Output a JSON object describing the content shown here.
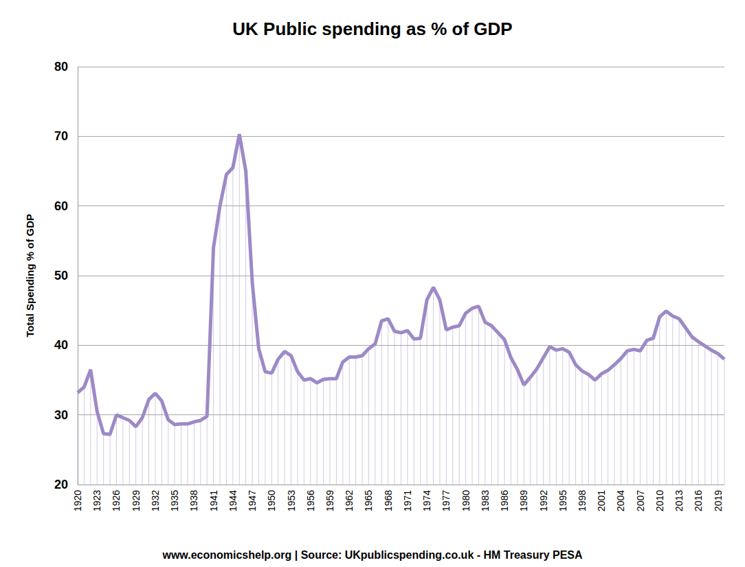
{
  "chart_data": {
    "type": "line",
    "title": "UK Public spending as % of GDP",
    "y_label": "Total Spending % of GDP",
    "annotation": "www.economicshelp.org | Source: UKpublicspending.co.uk - HM Treasury PESA",
    "categories": [
      "1920",
      null,
      null,
      "1923",
      null,
      null,
      "1926",
      null,
      null,
      "1929",
      null,
      null,
      "1932",
      null,
      null,
      "1935",
      null,
      null,
      "1938",
      null,
      null,
      "1941",
      null,
      null,
      "1944",
      null,
      null,
      "1947",
      null,
      null,
      "1950",
      null,
      null,
      "1953",
      null,
      null,
      "1956",
      null,
      null,
      "1959",
      null,
      null,
      "1962",
      null,
      null,
      "1965",
      null,
      null,
      "1968",
      null,
      null,
      "1971",
      null,
      null,
      "1974",
      null,
      null,
      "1977",
      null,
      null,
      "1980",
      null,
      null,
      "1983",
      null,
      null,
      "1986",
      null,
      null,
      "1989",
      null,
      null,
      "1992",
      null,
      null,
      "1995",
      null,
      null,
      "1998",
      null,
      null,
      "2001",
      null,
      null,
      "2004",
      null,
      null,
      "2007",
      null,
      null,
      "2010",
      null,
      null,
      "2013",
      null,
      null,
      "2016",
      null,
      null,
      "2019",
      null
    ],
    "values": [
      33.2,
      34.0,
      36.5,
      30.5,
      27.3,
      27.2,
      30.0,
      29.6,
      29.2,
      28.3,
      29.6,
      32.2,
      33.1,
      32.0,
      29.3,
      28.6,
      28.7,
      28.7,
      29.0,
      29.2,
      29.8,
      54.0,
      60.0,
      64.5,
      65.5,
      70.3,
      65.0,
      49.0,
      39.5,
      36.2,
      36.0,
      38.0,
      39.1,
      38.5,
      36.2,
      35.0,
      35.2,
      34.6,
      35.1,
      35.2,
      35.2,
      37.6,
      38.3,
      38.3,
      38.5,
      39.5,
      40.2,
      43.5,
      43.8,
      42.0,
      41.8,
      42.1,
      40.9,
      41.0,
      46.5,
      48.3,
      46.5,
      42.2,
      42.6,
      42.8,
      44.6,
      45.3,
      45.6,
      43.3,
      42.8,
      41.8,
      40.8,
      38.2,
      36.5,
      34.3,
      35.4,
      36.6,
      38.2,
      39.8,
      39.3,
      39.5,
      39.0,
      37.2,
      36.3,
      35.8,
      35.0,
      35.9,
      36.4,
      37.2,
      38.1,
      39.2,
      39.4,
      39.2,
      40.7,
      41.0,
      44.1,
      44.9,
      44.2,
      43.8,
      42.5,
      41.2,
      40.5,
      39.9,
      39.3,
      38.8,
      38.0
    ],
    "color": "#9d89c7",
    "ylim": [
      20,
      80
    ],
    "yticks": [
      20,
      30,
      40,
      50,
      60,
      70,
      80
    ],
    "grid": true
  }
}
